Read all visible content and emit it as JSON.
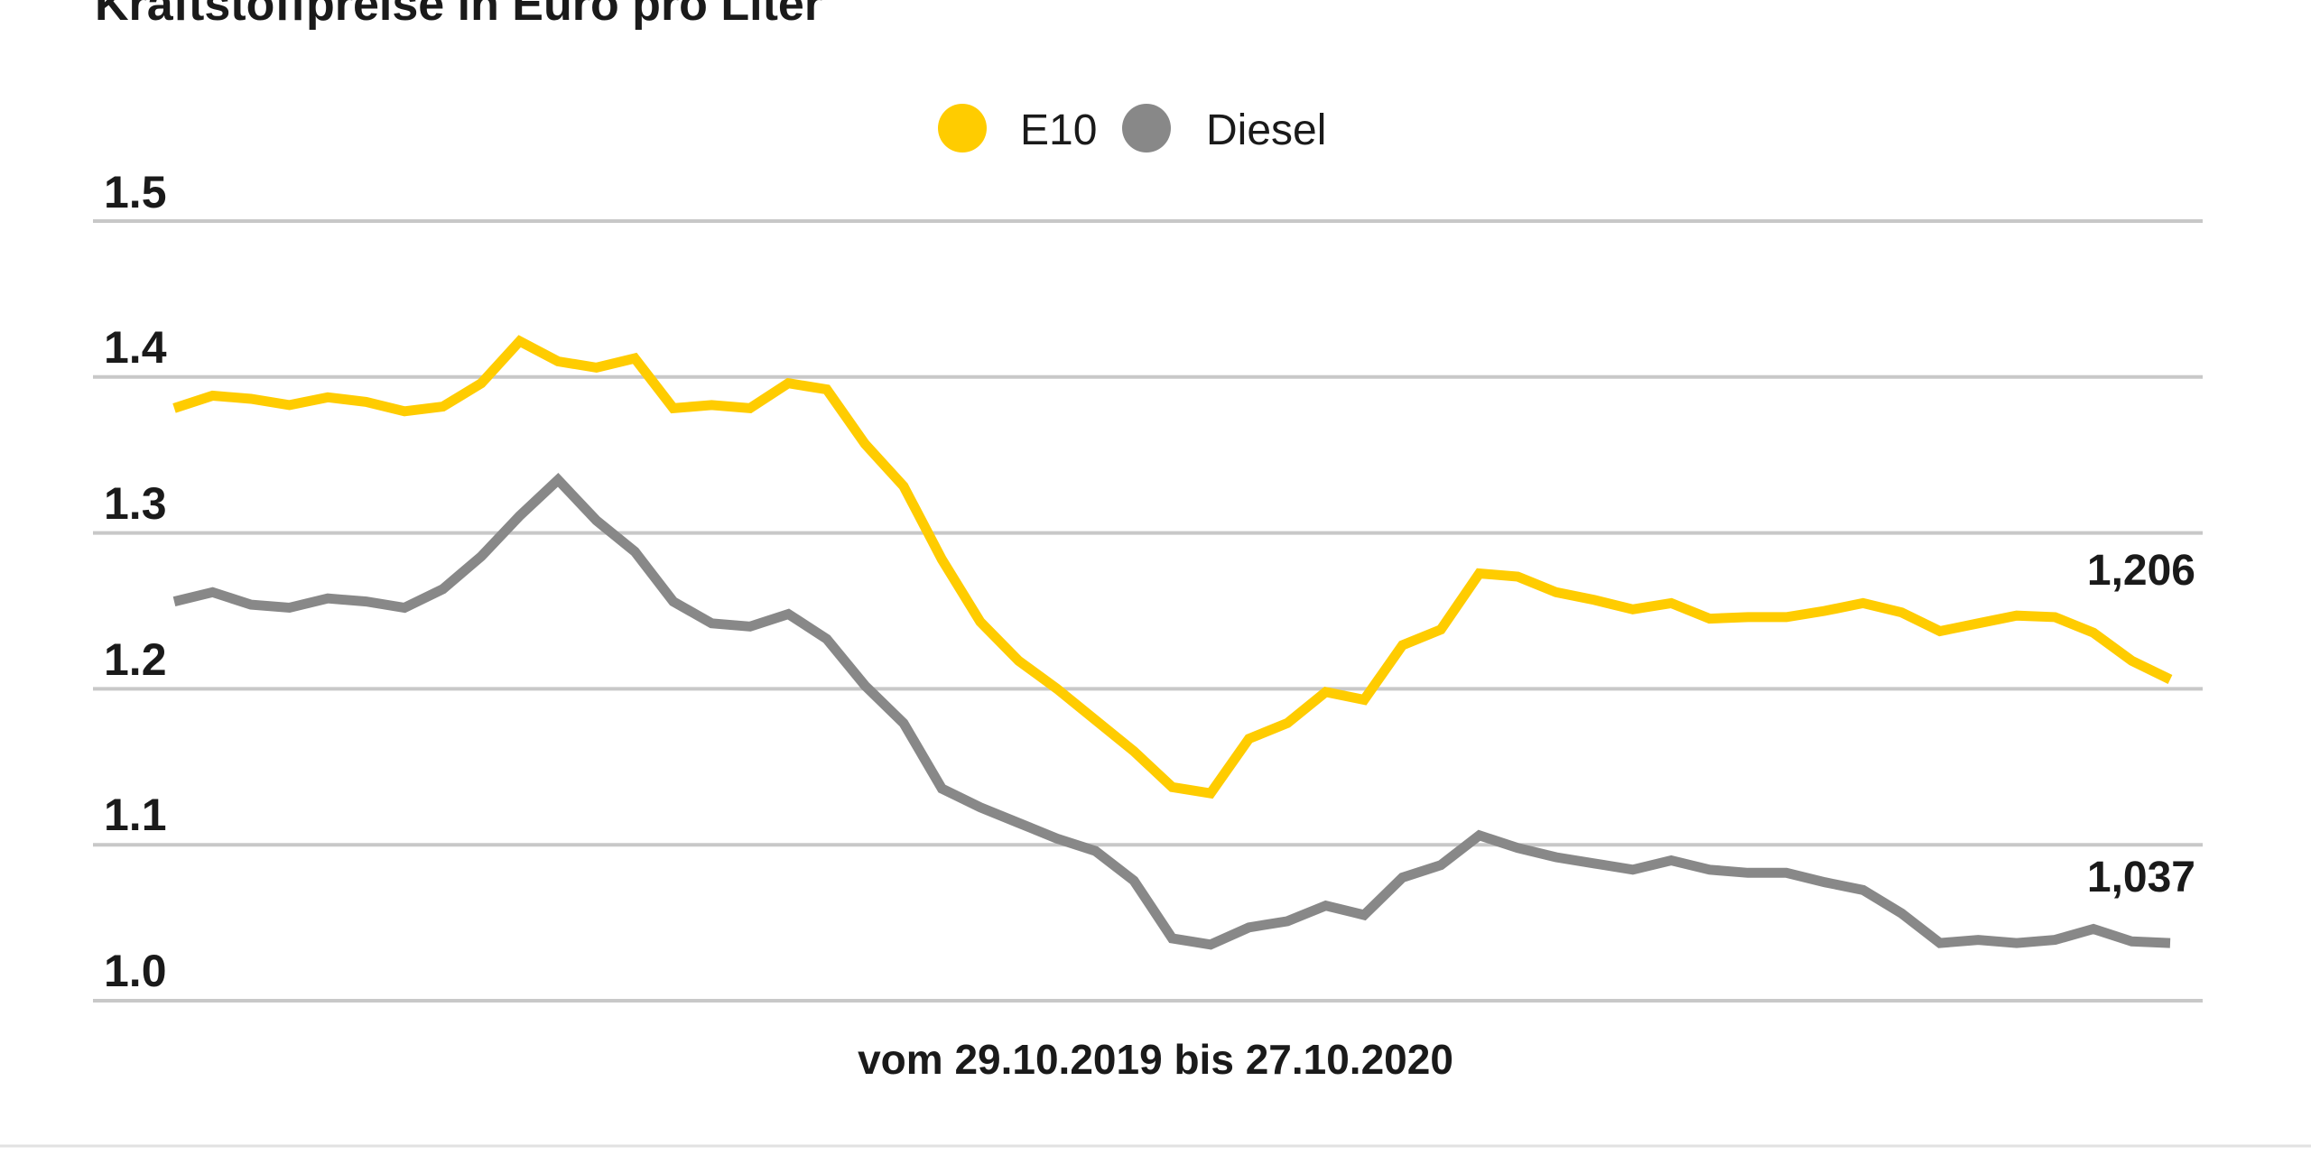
{
  "chart_data": {
    "type": "line",
    "title": "Kraftstoffpreise in Euro pro Liter",
    "xlabel": "vom 29.10.2019 bis 27.10.2020",
    "ylabel": "",
    "ylim": [
      1.0,
      1.5
    ],
    "yticks": [
      "1.5",
      "1.4",
      "1.3",
      "1.2",
      "1.1",
      "1.0"
    ],
    "grid": true,
    "legend_position": "top-center",
    "colors": {
      "E10": "#FFCC00",
      "Diesel": "#888888",
      "grid": "#C8C8C8"
    },
    "series": [
      {
        "name": "E10",
        "end_label": "1,206",
        "values": [
          1.38,
          1.388,
          1.386,
          1.382,
          1.387,
          1.384,
          1.378,
          1.381,
          1.396,
          1.423,
          1.41,
          1.406,
          1.412,
          1.38,
          1.382,
          1.38,
          1.396,
          1.392,
          1.357,
          1.33,
          1.283,
          1.243,
          1.218,
          1.2,
          1.18,
          1.16,
          1.137,
          1.133,
          1.168,
          1.178,
          1.198,
          1.193,
          1.228,
          1.238,
          1.274,
          1.272,
          1.262,
          1.257,
          1.251,
          1.255,
          1.245,
          1.246,
          1.246,
          1.25,
          1.255,
          1.249,
          1.237,
          1.242,
          1.247,
          1.246,
          1.236,
          1.218,
          1.206
        ]
      },
      {
        "name": "Diesel",
        "end_label": "1,037",
        "values": [
          1.256,
          1.262,
          1.254,
          1.252,
          1.258,
          1.256,
          1.252,
          1.264,
          1.285,
          1.311,
          1.334,
          1.308,
          1.288,
          1.256,
          1.242,
          1.24,
          1.248,
          1.232,
          1.202,
          1.178,
          1.136,
          1.124,
          1.114,
          1.104,
          1.096,
          1.077,
          1.04,
          1.036,
          1.047,
          1.051,
          1.061,
          1.055,
          1.079,
          1.087,
          1.106,
          1.098,
          1.092,
          1.088,
          1.084,
          1.09,
          1.084,
          1.082,
          1.082,
          1.076,
          1.071,
          1.056,
          1.037,
          1.039,
          1.037,
          1.039,
          1.046,
          1.038,
          1.037
        ]
      }
    ]
  }
}
